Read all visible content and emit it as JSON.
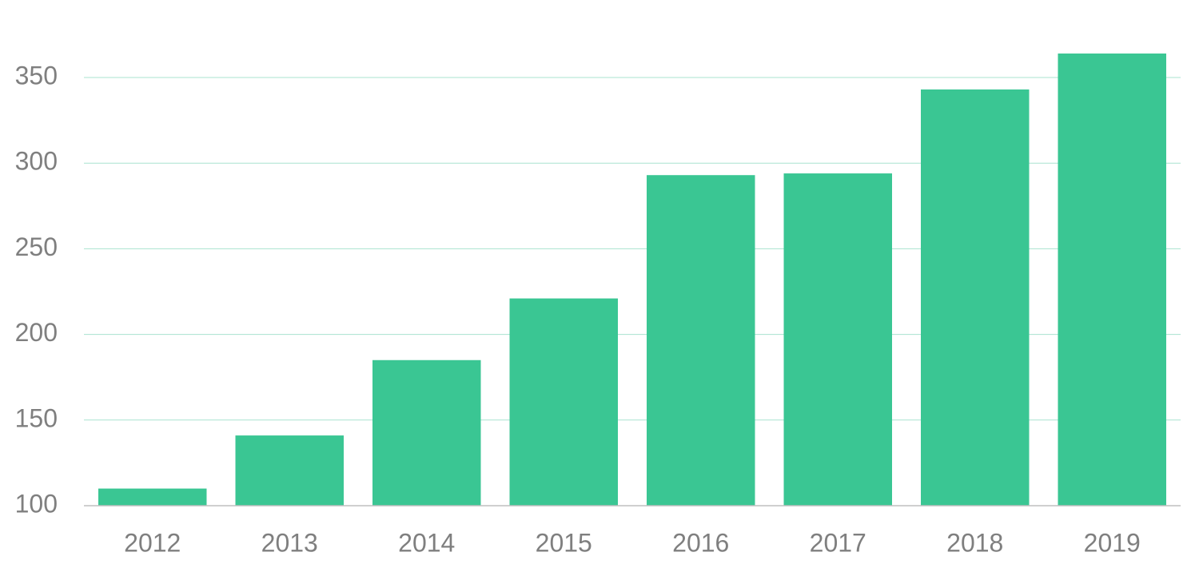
{
  "chart_data": {
    "type": "bar",
    "categories": [
      "2012",
      "2013",
      "2014",
      "2015",
      "2016",
      "2017",
      "2018",
      "2019"
    ],
    "values": [
      110,
      141,
      185,
      221,
      293,
      294,
      343,
      364
    ],
    "color": "#3ac693",
    "ylim": [
      100,
      390
    ],
    "yticks": [
      100,
      150,
      200,
      250,
      300,
      350
    ],
    "grid": true
  }
}
